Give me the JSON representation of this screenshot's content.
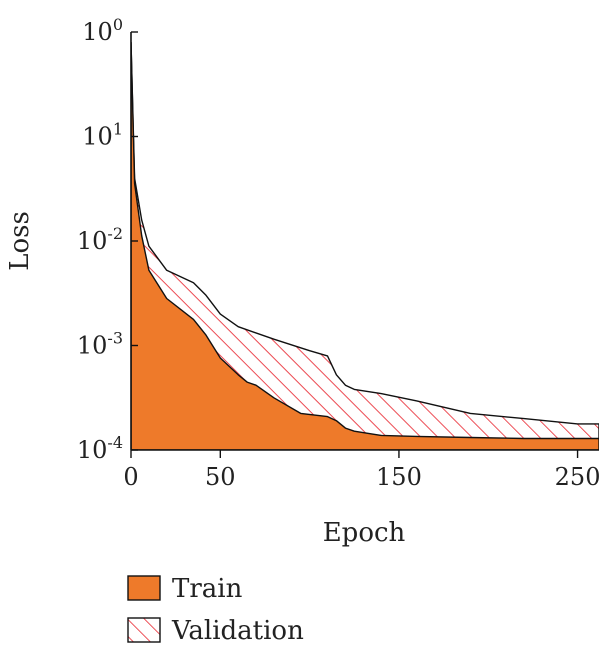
{
  "chart_data": {
    "type": "area",
    "title": "",
    "xlabel": "Epoch",
    "ylabel": "Loss",
    "x_ticks": [
      {
        "value": 0,
        "label": "0"
      },
      {
        "value": 50,
        "label": "50"
      },
      {
        "value": 150,
        "label": "150"
      },
      {
        "value": 250,
        "label": "250"
      }
    ],
    "y_ticks": [
      {
        "base": "10",
        "exp": "0"
      },
      {
        "base": "10",
        "exp": "1"
      },
      {
        "base": "10",
        "exp": "-2"
      },
      {
        "base": "10",
        "exp": "-3"
      },
      {
        "base": "10",
        "exp": "-4"
      }
    ],
    "xlim": [
      0,
      262
    ],
    "legend_position": "bottom-left",
    "colors": {
      "train": "#EE7A2A",
      "validation_hatch": "#E8202A",
      "outline": "#111111"
    },
    "series": [
      {
        "name": "Train",
        "style": "solid-fill",
        "x": [
          0,
          2,
          6,
          10,
          20,
          35,
          42,
          50,
          60,
          65,
          70,
          80,
          95,
          110,
          115,
          120,
          125,
          140,
          160,
          190,
          220,
          250,
          262
        ],
        "y_band": [
          3.9,
          2.55,
          2.05,
          1.72,
          1.45,
          1.25,
          1.1,
          0.88,
          0.72,
          0.65,
          0.62,
          0.5,
          0.35,
          0.32,
          0.28,
          0.21,
          0.18,
          0.14,
          0.13,
          0.12,
          0.11,
          0.11,
          0.11
        ]
      },
      {
        "name": "Validation",
        "style": "hatched",
        "x": [
          0,
          2,
          6,
          10,
          20,
          35,
          42,
          50,
          60,
          80,
          100,
          110,
          115,
          120,
          125,
          140,
          160,
          190,
          220,
          250,
          262
        ],
        "y_band": [
          3.9,
          2.6,
          2.2,
          1.95,
          1.72,
          1.6,
          1.48,
          1.3,
          1.18,
          1.06,
          0.95,
          0.9,
          0.72,
          0.62,
          0.58,
          0.54,
          0.47,
          0.35,
          0.3,
          0.25,
          0.25
        ]
      }
    ]
  }
}
